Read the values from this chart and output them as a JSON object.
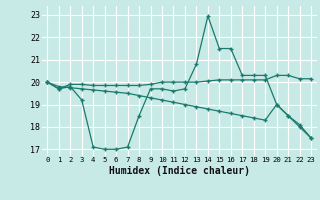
{
  "xlabel": "Humidex (Indice chaleur)",
  "bg_color": "#c8eae6",
  "line_color": "#1a7a6e",
  "grid_color": "#ffffff",
  "xlim": [
    -0.5,
    23.5
  ],
  "ylim": [
    16.7,
    23.4
  ],
  "yticks": [
    17,
    18,
    19,
    20,
    21,
    22,
    23
  ],
  "xticks": [
    0,
    1,
    2,
    3,
    4,
    5,
    6,
    7,
    8,
    9,
    10,
    11,
    12,
    13,
    14,
    15,
    16,
    17,
    18,
    19,
    20,
    21,
    22,
    23
  ],
  "line1_x": [
    0,
    1,
    2,
    3,
    4,
    5,
    6,
    7,
    8,
    9,
    10,
    11,
    12,
    13,
    14,
    15,
    16,
    17,
    18,
    19,
    20,
    21,
    22,
    23
  ],
  "line1_y": [
    20.0,
    19.7,
    19.8,
    19.2,
    17.1,
    17.0,
    17.0,
    17.1,
    18.5,
    19.7,
    19.7,
    19.6,
    19.7,
    20.8,
    22.95,
    21.5,
    21.5,
    20.3,
    20.3,
    20.3,
    19.0,
    18.5,
    18.0,
    17.5
  ],
  "line2_x": [
    0,
    1,
    2,
    3,
    4,
    5,
    6,
    7,
    8,
    9,
    10,
    11,
    12,
    13,
    14,
    15,
    16,
    17,
    18,
    19,
    20,
    21,
    22,
    23
  ],
  "line2_y": [
    20.0,
    19.7,
    19.9,
    19.9,
    19.85,
    19.85,
    19.85,
    19.85,
    19.85,
    19.9,
    20.0,
    20.0,
    20.0,
    20.0,
    20.05,
    20.1,
    20.1,
    20.1,
    20.1,
    20.1,
    20.3,
    20.3,
    20.15,
    20.15
  ],
  "line3_x": [
    0,
    1,
    2,
    3,
    4,
    5,
    6,
    7,
    8,
    9,
    10,
    11,
    12,
    13,
    14,
    15,
    16,
    17,
    18,
    19,
    20,
    21,
    22,
    23
  ],
  "line3_y": [
    20.0,
    19.8,
    19.75,
    19.7,
    19.65,
    19.6,
    19.55,
    19.5,
    19.4,
    19.3,
    19.2,
    19.1,
    19.0,
    18.9,
    18.8,
    18.7,
    18.6,
    18.5,
    18.4,
    18.3,
    19.0,
    18.5,
    18.1,
    17.5
  ]
}
